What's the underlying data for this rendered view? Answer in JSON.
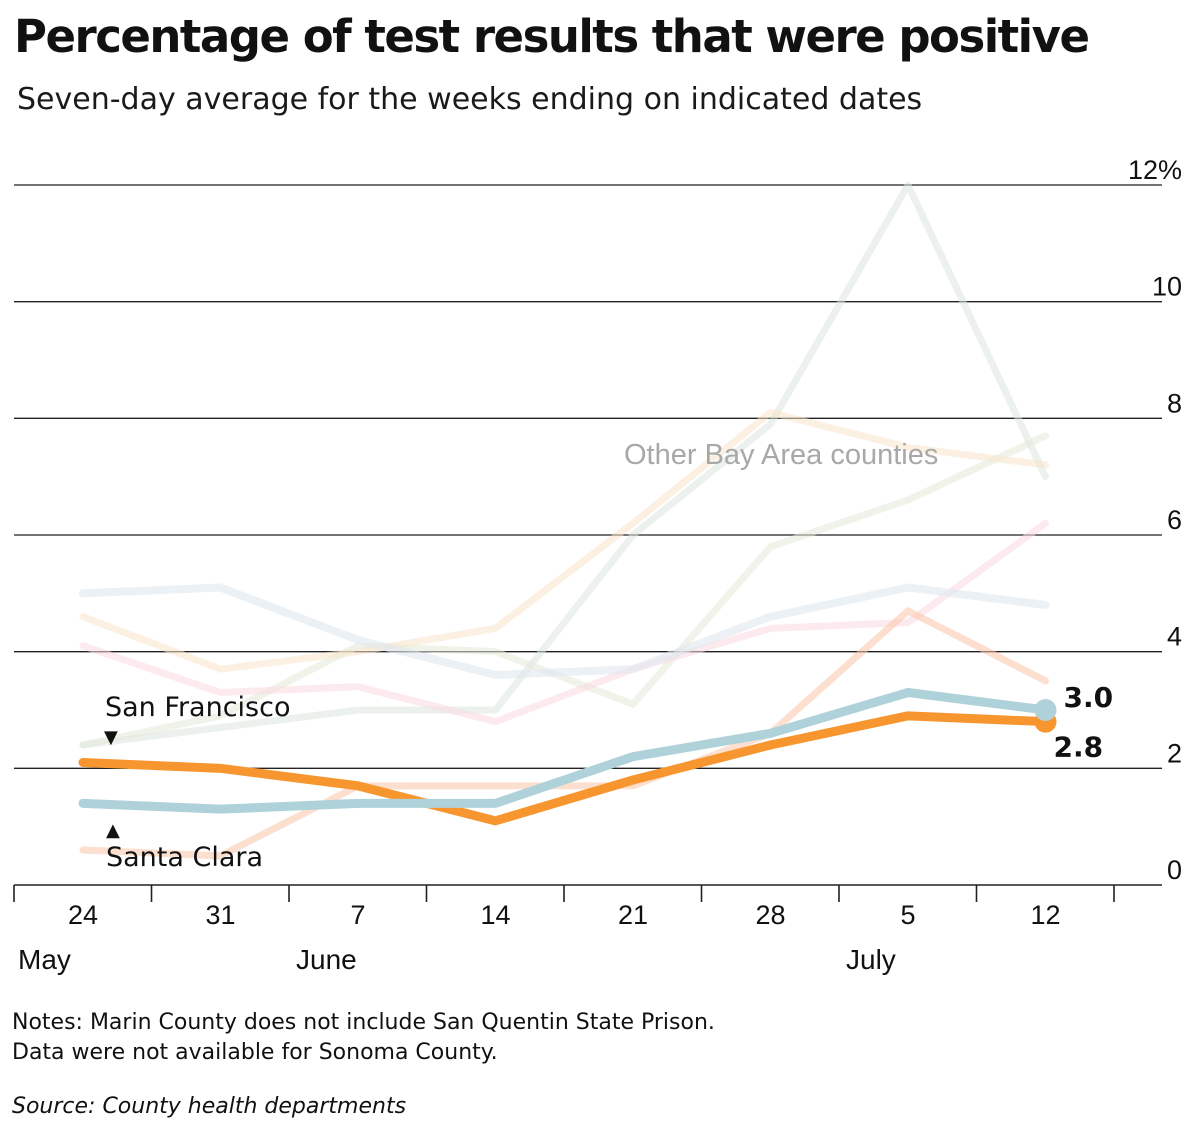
{
  "header": {
    "title": "Percentage of test results that were positive",
    "subtitle": "Seven-day average for the weeks ending on indicated dates"
  },
  "chart_data": {
    "type": "line",
    "title": "Percentage of test results that were positive",
    "subtitle": "Seven-day average for the weeks ending on indicated dates",
    "x": [
      "24",
      "31",
      "7",
      "14",
      "21",
      "28",
      "5",
      "12"
    ],
    "month_labels": [
      {
        "label": "May",
        "at": 0
      },
      {
        "label": "June",
        "at": 2
      },
      {
        "label": "July",
        "at": 6
      }
    ],
    "ylim": [
      0,
      12
    ],
    "y_ticks": [
      {
        "value": 0,
        "label": "0"
      },
      {
        "value": 2,
        "label": "2"
      },
      {
        "value": 4,
        "label": "4"
      },
      {
        "value": 6,
        "label": "6"
      },
      {
        "value": 8,
        "label": "8"
      },
      {
        "value": 10,
        "label": "10"
      },
      {
        "value": 12,
        "label": "12%"
      }
    ],
    "grid": true,
    "series": [
      {
        "values": [
          2.4,
          2.7,
          3.0,
          3.0,
          6.0,
          7.9,
          12.0,
          7.0
        ],
        "color": "#dde5e0",
        "opacity": 0.55,
        "width": 7
      },
      {
        "values": [
          2.4,
          2.9,
          4.1,
          4.0,
          3.1,
          5.8,
          6.6,
          7.7
        ],
        "color": "#e3ead8",
        "opacity": 0.55,
        "width": 7
      },
      {
        "values": [
          4.6,
          3.7,
          4.0,
          4.4,
          6.2,
          8.1,
          7.5,
          7.2
        ],
        "color": "#f8e4c8",
        "opacity": 0.55,
        "width": 7
      },
      {
        "values": [
          4.1,
          3.3,
          3.4,
          2.8,
          3.7,
          4.4,
          4.5,
          6.2
        ],
        "color": "#f9d9e0",
        "opacity": 0.55,
        "width": 7
      },
      {
        "values": [
          0.6,
          0.5,
          1.7,
          1.7,
          1.7,
          2.6,
          4.7,
          3.5
        ],
        "color": "#f9c4a8",
        "opacity": 0.55,
        "width": 7
      },
      {
        "values": [
          5.0,
          5.1,
          4.2,
          3.6,
          3.7,
          4.6,
          5.1,
          4.8
        ],
        "color": "#dfe8f0",
        "opacity": 0.6,
        "width": 8
      },
      {
        "name": "San Francisco",
        "values": [
          2.1,
          2.0,
          1.7,
          1.1,
          1.8,
          2.4,
          2.9,
          2.8
        ],
        "color": "#f7962f",
        "opacity": 1,
        "width": 9,
        "end_label": "2.8"
      },
      {
        "name": "Santa Clara",
        "values": [
          1.4,
          1.3,
          1.4,
          1.4,
          2.2,
          2.6,
          3.3,
          3.0
        ],
        "color": "#afd2da",
        "opacity": 1,
        "width": 9,
        "end_label": "3.0"
      }
    ],
    "annotations": {
      "other_counties": "Other Bay Area counties",
      "sf_label": "San Francisco",
      "sf_marker": "▼",
      "sc_label": "Santa Clara",
      "sc_marker": "▲"
    }
  },
  "footer": {
    "notes_line1": "Notes: Marin County does not include San Quentin State Prison.",
    "notes_line2": "Data were not available for Sonoma County.",
    "source": "Source: County health departments"
  }
}
